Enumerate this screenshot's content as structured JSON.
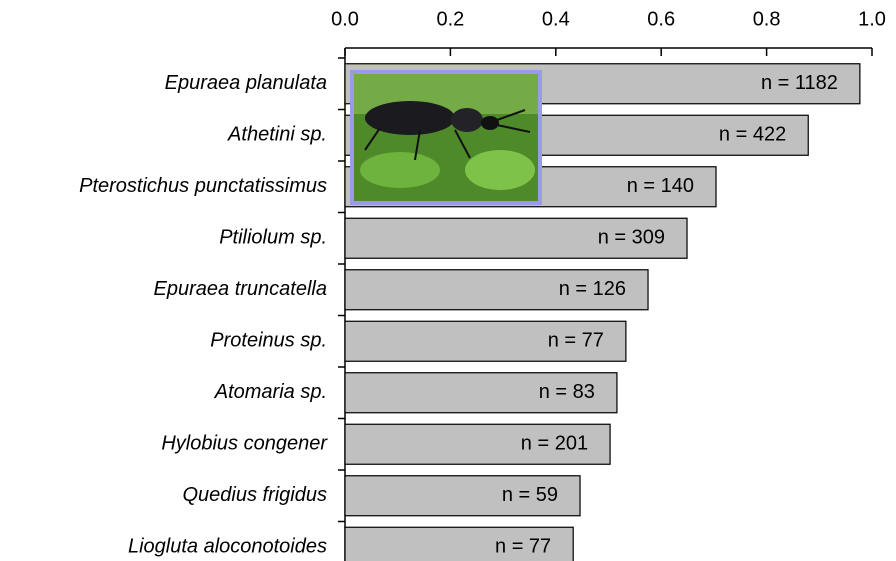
{
  "chart_data": {
    "type": "bar",
    "orientation": "horizontal",
    "categories": [
      "Epuraea planulata",
      "Athetini sp.",
      "Pterostichus punctatissimus",
      "Ptiliolum sp.",
      "Epuraea truncatella",
      "Proteinus sp.",
      "Atomaria sp.",
      "Hylobius congener",
      "Quedius frigidus",
      "Liogluta aloconotoides"
    ],
    "values": [
      0.977,
      0.879,
      0.704,
      0.649,
      0.575,
      0.533,
      0.516,
      0.503,
      0.446,
      0.433
    ],
    "bar_labels": [
      "n = 1182",
      "n = 422",
      "n = 140",
      "n = 309",
      "n = 126",
      "n = 77",
      "n = 83",
      "n = 201",
      "n = 59",
      "n = 77"
    ],
    "color": "#c0c0c0",
    "xlim": [
      0,
      1
    ],
    "xticks": [
      {
        "value": 0,
        "label": "0.0"
      },
      {
        "value": 0.2,
        "label": "0.2"
      },
      {
        "value": 0.4,
        "label": "0.4"
      },
      {
        "value": 0.6,
        "label": "0.6"
      },
      {
        "value": 0.8,
        "label": "0.8"
      },
      {
        "value": 1,
        "label": "1.0"
      }
    ],
    "grid": false
  }
}
